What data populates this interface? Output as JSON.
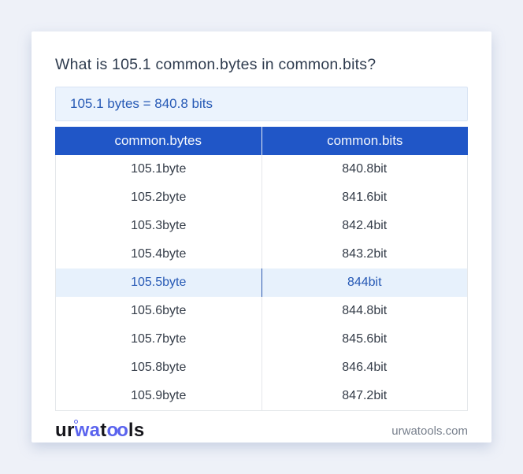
{
  "title": "What is 105.1 common.bytes in common.bits?",
  "answer": {
    "text": "105.1 bytes = 840.8 bits"
  },
  "table": {
    "headers": [
      "common.bytes",
      "common.bits"
    ],
    "rows": [
      {
        "bytes": "105.1byte",
        "bits": "840.8bit",
        "highlighted": false
      },
      {
        "bytes": "105.2byte",
        "bits": "841.6bit",
        "highlighted": false
      },
      {
        "bytes": "105.3byte",
        "bits": "842.4bit",
        "highlighted": false
      },
      {
        "bytes": "105.4byte",
        "bits": "843.2bit",
        "highlighted": false
      },
      {
        "bytes": "105.5byte",
        "bits": "844bit",
        "highlighted": true
      },
      {
        "bytes": "105.6byte",
        "bits": "844.8bit",
        "highlighted": false
      },
      {
        "bytes": "105.7byte",
        "bits": "845.6bit",
        "highlighted": false
      },
      {
        "bytes": "105.8byte",
        "bits": "846.4bit",
        "highlighted": false
      },
      {
        "bytes": "105.9byte",
        "bits": "847.2bit",
        "highlighted": false
      }
    ]
  },
  "footer": {
    "logo": {
      "p1": "ur",
      "p2": "wa",
      "p3": "t",
      "p4": "oo",
      "p5": "ls"
    },
    "site": "urwatools.com"
  },
  "colors": {
    "page_background": "#eef1f8",
    "card_background": "#ffffff",
    "header_blue": "#2056c7",
    "answer_box_background": "#ebf3fd",
    "answer_text_blue": "#2659b5",
    "highlight_row_background": "#e7f1fc",
    "logo_blue": "#5a63ee",
    "body_text": "#343c48",
    "muted_text": "#78808d"
  }
}
